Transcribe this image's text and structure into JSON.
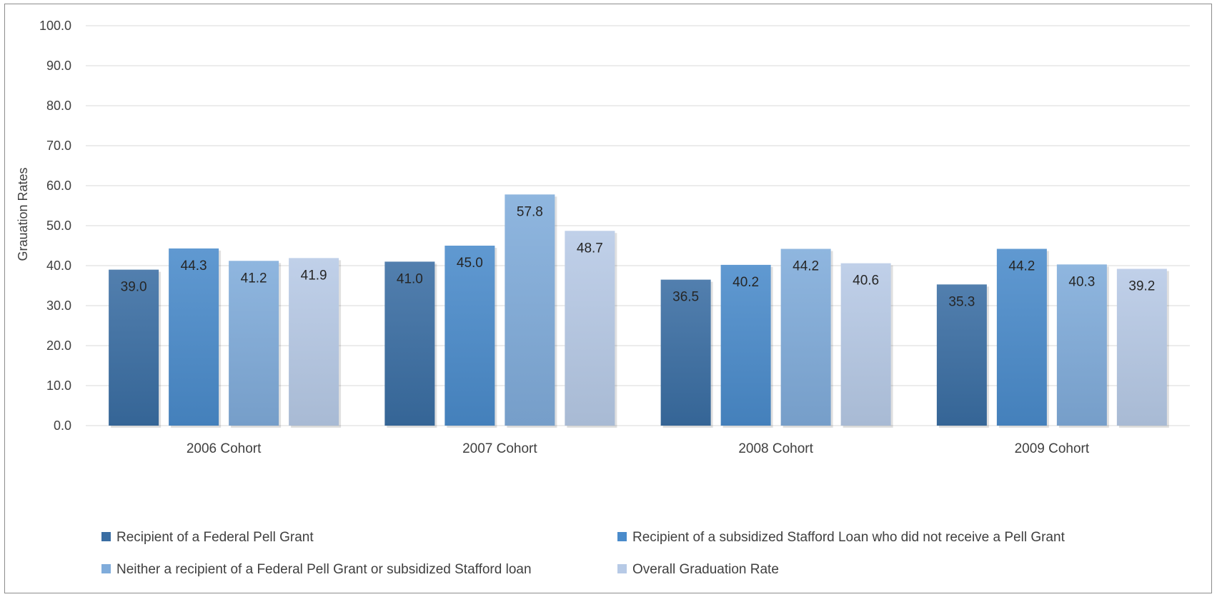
{
  "chart_data": {
    "type": "bar",
    "title": "",
    "xlabel": "",
    "ylabel": "Grauation Rates",
    "ylim": [
      0,
      100
    ],
    "yticks": [
      "0.0",
      "10.0",
      "20.0",
      "30.0",
      "40.0",
      "50.0",
      "60.0",
      "70.0",
      "80.0",
      "90.0",
      "100.0"
    ],
    "grid": true,
    "legend_position": "bottom",
    "categories": [
      "2006 Cohort",
      "2007 Cohort",
      "2008 Cohort",
      "2009 Cohort"
    ],
    "series": [
      {
        "name": "Recipient of a Federal Pell Grant",
        "color": "#3a6ea3",
        "values": [
          39.0,
          41.0,
          36.5,
          35.3
        ],
        "labels": [
          "39.0",
          "41.0",
          "36.5",
          "35.3"
        ]
      },
      {
        "name": "Recipient of a subsidized Stafford Loan who did not receive a Pell Grant",
        "color": "#4a8bcb",
        "values": [
          44.3,
          45.0,
          40.2,
          44.2
        ],
        "labels": [
          "44.3",
          "45.0",
          "40.2",
          "44.2"
        ]
      },
      {
        "name": "Neither a recipient of a Federal Pell Grant or subsidized Stafford loan",
        "color": "#80acdb",
        "values": [
          41.2,
          57.8,
          44.2,
          40.3
        ],
        "labels": [
          "41.2",
          "57.8",
          "44.2",
          "40.3"
        ]
      },
      {
        "name": "Overall Graduation Rate",
        "color": "#b7cae6",
        "values": [
          41.9,
          48.7,
          40.6,
          39.2
        ],
        "labels": [
          "41.9",
          "48.7",
          "40.6",
          "39.2"
        ]
      }
    ]
  }
}
